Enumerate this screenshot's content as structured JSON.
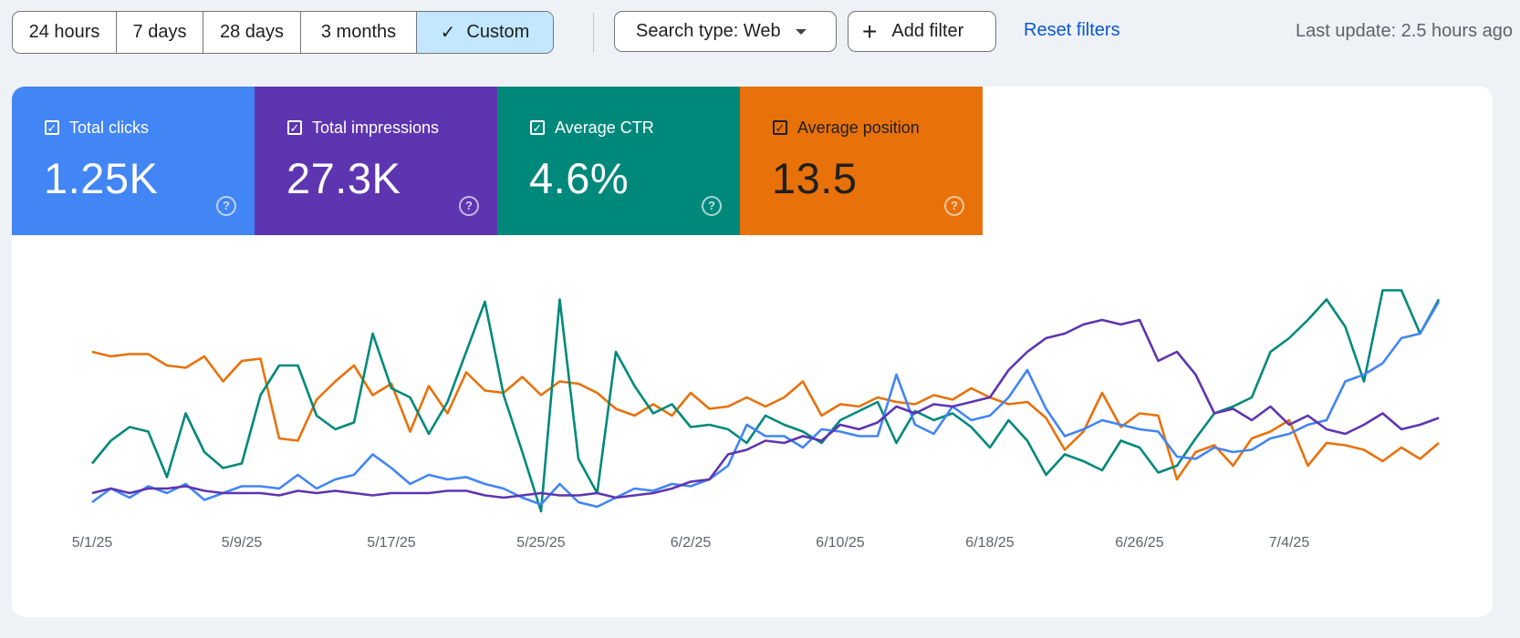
{
  "toolbar": {
    "ranges": [
      {
        "label": "24 hours",
        "active": false
      },
      {
        "label": "7 days",
        "active": false
      },
      {
        "label": "28 days",
        "active": false
      },
      {
        "label": "3 months",
        "active": false
      },
      {
        "label": "Custom",
        "active": true
      }
    ],
    "search_type": "Search type: Web",
    "add_filter": "Add filter",
    "reset_filters": "Reset filters",
    "last_update": "Last update: 2.5 hours ago"
  },
  "metrics": [
    {
      "label": "Total clicks",
      "value": "1.25K",
      "color": "#4285f4",
      "checked": true
    },
    {
      "label": "Total impressions",
      "value": "27.3K",
      "color": "#5e35b1",
      "checked": true
    },
    {
      "label": "Average CTR",
      "value": "4.6%",
      "color": "#00897b",
      "checked": true
    },
    {
      "label": "Average position",
      "value": "13.5",
      "color": "#e8710a",
      "checked": true
    }
  ],
  "chart_data": {
    "type": "line",
    "x_ticks": [
      "5/1/25",
      "5/9/25",
      "5/17/25",
      "5/25/25",
      "6/2/25",
      "6/10/25",
      "6/18/25",
      "6/26/25",
      "7/4/25"
    ],
    "x_start": "2025-05-01",
    "num_days": 73,
    "ylim": [
      0,
      1
    ],
    "grid": false,
    "legend": "none",
    "series": [
      {
        "name": "Average position",
        "color": "#e8710a",
        "values": [
          0.72,
          0.7,
          0.71,
          0.71,
          0.66,
          0.65,
          0.7,
          0.59,
          0.68,
          0.69,
          0.34,
          0.33,
          0.51,
          0.59,
          0.66,
          0.53,
          0.58,
          0.37,
          0.57,
          0.45,
          0.63,
          0.55,
          0.54,
          0.61,
          0.53,
          0.59,
          0.58,
          0.54,
          0.47,
          0.44,
          0.49,
          0.44,
          0.54,
          0.47,
          0.48,
          0.52,
          0.48,
          0.52,
          0.59,
          0.44,
          0.49,
          0.48,
          0.52,
          0.5,
          0.49,
          0.53,
          0.51,
          0.56,
          0.52,
          0.49,
          0.5,
          0.43,
          0.29,
          0.37,
          0.54,
          0.39,
          0.45,
          0.44,
          0.16,
          0.28,
          0.31,
          0.22,
          0.34,
          0.37,
          0.42,
          0.22,
          0.32,
          0.31,
          0.29,
          0.24,
          0.3,
          0.25,
          0.32
        ]
      },
      {
        "name": "Average CTR",
        "color": "#00897b",
        "values": [
          0.23,
          0.33,
          0.39,
          0.37,
          0.17,
          0.45,
          0.28,
          0.21,
          0.23,
          0.53,
          0.66,
          0.66,
          0.44,
          0.38,
          0.41,
          0.8,
          0.56,
          0.52,
          0.36,
          0.5,
          0.72,
          0.94,
          0.53,
          0.28,
          0.02,
          0.95,
          0.25,
          0.1,
          0.72,
          0.57,
          0.45,
          0.49,
          0.39,
          0.4,
          0.38,
          0.32,
          0.44,
          0.4,
          0.37,
          0.32,
          0.42,
          0.46,
          0.5,
          0.32,
          0.46,
          0.42,
          0.45,
          0.39,
          0.3,
          0.42,
          0.33,
          0.18,
          0.27,
          0.24,
          0.2,
          0.33,
          0.3,
          0.19,
          0.22,
          0.34,
          0.45,
          0.48,
          0.52,
          0.72,
          0.78,
          0.86,
          0.95,
          0.83,
          0.59,
          0.99,
          0.99,
          0.8,
          0.95
        ]
      },
      {
        "name": "Total clicks",
        "color": "#4285f4",
        "values": [
          0.06,
          0.12,
          0.08,
          0.13,
          0.1,
          0.14,
          0.07,
          0.1,
          0.13,
          0.13,
          0.12,
          0.18,
          0.12,
          0.16,
          0.18,
          0.27,
          0.21,
          0.14,
          0.18,
          0.16,
          0.17,
          0.14,
          0.12,
          0.08,
          0.05,
          0.14,
          0.06,
          0.04,
          0.08,
          0.12,
          0.11,
          0.14,
          0.13,
          0.16,
          0.22,
          0.4,
          0.35,
          0.35,
          0.3,
          0.38,
          0.37,
          0.35,
          0.35,
          0.62,
          0.4,
          0.36,
          0.48,
          0.42,
          0.44,
          0.52,
          0.64,
          0.47,
          0.35,
          0.38,
          0.42,
          0.4,
          0.38,
          0.37,
          0.26,
          0.25,
          0.3,
          0.28,
          0.29,
          0.34,
          0.36,
          0.4,
          0.42,
          0.59,
          0.62,
          0.67,
          0.78,
          0.8,
          0.94
        ]
      },
      {
        "name": "Total impressions",
        "color": "#5e35b1",
        "values": [
          0.1,
          0.12,
          0.1,
          0.12,
          0.12,
          0.13,
          0.11,
          0.1,
          0.1,
          0.1,
          0.09,
          0.11,
          0.1,
          0.11,
          0.1,
          0.09,
          0.1,
          0.1,
          0.1,
          0.11,
          0.11,
          0.09,
          0.08,
          0.09,
          0.1,
          0.09,
          0.09,
          0.1,
          0.08,
          0.09,
          0.1,
          0.12,
          0.15,
          0.16,
          0.27,
          0.29,
          0.33,
          0.32,
          0.35,
          0.33,
          0.4,
          0.38,
          0.41,
          0.48,
          0.45,
          0.49,
          0.48,
          0.5,
          0.52,
          0.64,
          0.72,
          0.78,
          0.8,
          0.84,
          0.86,
          0.84,
          0.86,
          0.68,
          0.72,
          0.62,
          0.45,
          0.47,
          0.42,
          0.48,
          0.4,
          0.44,
          0.38,
          0.36,
          0.4,
          0.45,
          0.38,
          0.4,
          0.43
        ]
      }
    ]
  }
}
